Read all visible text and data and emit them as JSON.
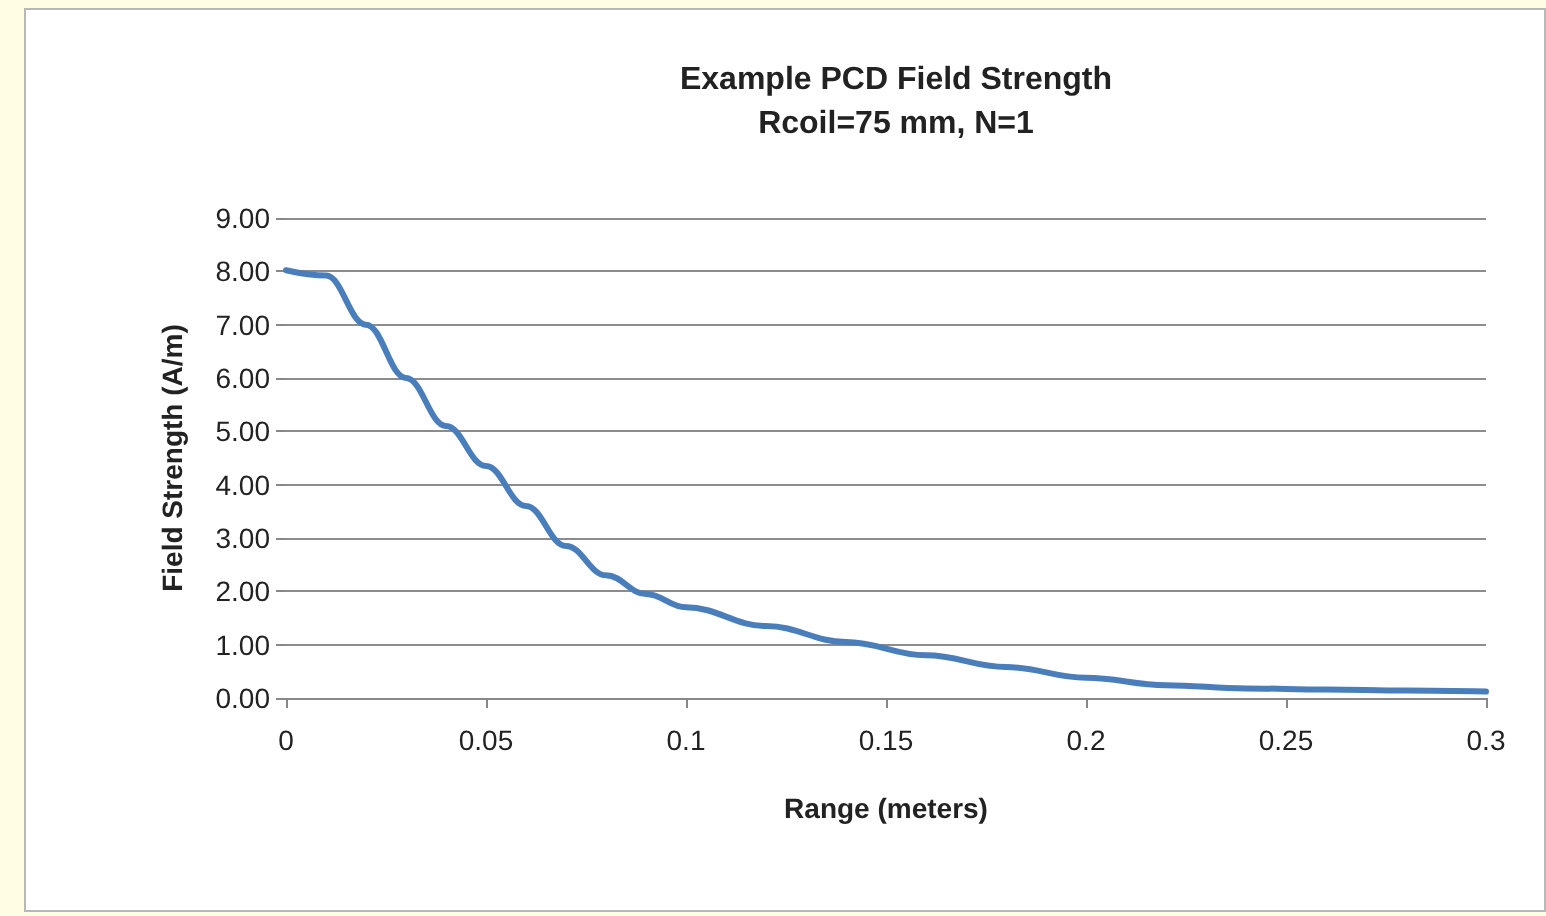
{
  "chart_data": {
    "type": "line",
    "title": "Example PCD Field Strength",
    "subtitle": "Rcoil=75 mm, N=1",
    "xlabel": "Range (meters)",
    "ylabel": "Field Strength (A/m)",
    "x": [
      0,
      0.01,
      0.02,
      0.03,
      0.04,
      0.05,
      0.06,
      0.07,
      0.08,
      0.09,
      0.1,
      0.12,
      0.14,
      0.16,
      0.18,
      0.2,
      0.22,
      0.24,
      0.26,
      0.28,
      0.3
    ],
    "series": [
      {
        "color": "#4a7ebb",
        "values": [
          8.02,
          7.92,
          7.0,
          6.0,
          5.1,
          4.35,
          3.6,
          2.85,
          2.3,
          1.95,
          1.7,
          1.35,
          1.05,
          0.8,
          0.58,
          0.38,
          0.24,
          0.18,
          0.16,
          0.14,
          0.12
        ]
      }
    ],
    "xlim": [
      0,
      0.3
    ],
    "xticks": [
      0,
      0.05,
      0.1,
      0.15,
      0.2,
      0.25,
      0.3
    ],
    "ylim": [
      0,
      9
    ],
    "yticks": [
      {
        "value": 0,
        "label": "0.00"
      },
      {
        "value": 1,
        "label": "1.00"
      },
      {
        "value": 2,
        "label": "2.00"
      },
      {
        "value": 3,
        "label": "3.00"
      },
      {
        "value": 4,
        "label": "4.00"
      },
      {
        "value": 5,
        "label": "5.00"
      },
      {
        "value": 6,
        "label": "6.00"
      },
      {
        "value": 7,
        "label": "7.00"
      },
      {
        "value": 8,
        "label": "8.00"
      },
      {
        "value": 9,
        "label": "9.00"
      }
    ],
    "grid": "y",
    "marker": "none",
    "line_style": "solid"
  }
}
